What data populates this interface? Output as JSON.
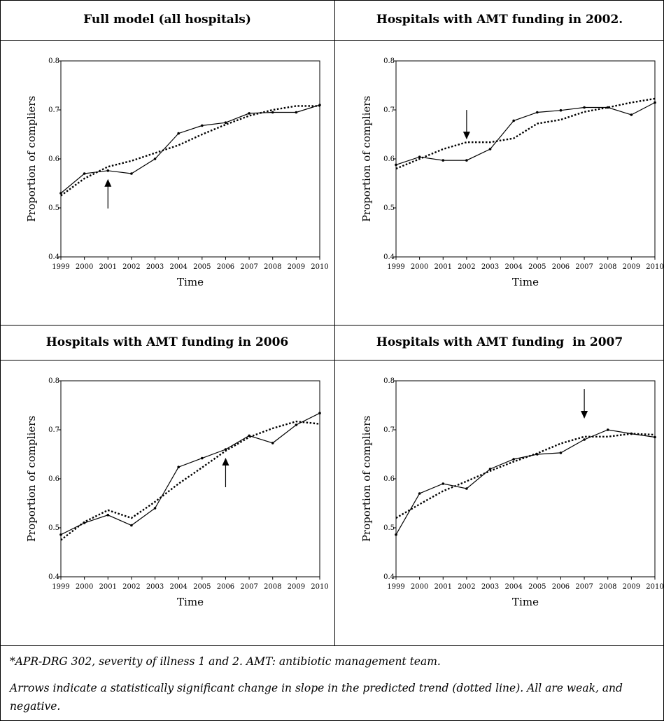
{
  "panels": [
    {
      "title": "Full model (all hospitals)",
      "chart_data": {
        "type": "line",
        "title": "Full model (all hospitals)",
        "xlabel": "Time",
        "ylabel": "Proportion of compliers",
        "x": [
          1999,
          2000,
          2001,
          2002,
          2003,
          2004,
          2005,
          2006,
          2007,
          2008,
          2009,
          2010
        ],
        "xlim": [
          1999,
          2010
        ],
        "ylim": [
          0.4,
          0.8
        ],
        "yticks": [
          "0.4",
          "0.5",
          "0.6",
          "0.7",
          "0.8"
        ],
        "series": [
          {
            "style": "solid",
            "values": [
              0.53,
              0.57,
              0.576,
              0.57,
              0.6,
              0.652,
              0.668,
              0.674,
              0.693,
              0.695,
              0.695,
              0.71
            ]
          },
          {
            "style": "dotted",
            "values": [
              0.525,
              0.56,
              0.584,
              0.596,
              0.612,
              0.628,
              0.65,
              0.67,
              0.688,
              0.7,
              0.708,
              0.708
            ]
          }
        ],
        "arrow": {
          "x": 2001,
          "direction": "up"
        },
        "grid": false,
        "legend": "none"
      }
    },
    {
      "title": "Hospitals with AMT funding in 2002.",
      "chart_data": {
        "type": "line",
        "title": "Hospitals with AMT funding in 2002.",
        "xlabel": "Time",
        "ylabel": "Proportion of compliers",
        "x": [
          1999,
          2000,
          2001,
          2002,
          2003,
          2004,
          2005,
          2006,
          2007,
          2008,
          2009,
          2010
        ],
        "xlim": [
          1999,
          2010
        ],
        "ylim": [
          0.4,
          0.8
        ],
        "yticks": [
          "0.4",
          "0.5",
          "0.6",
          "0.7",
          "0.8"
        ],
        "series": [
          {
            "style": "solid",
            "values": [
              0.588,
              0.604,
              0.597,
              0.597,
              0.62,
              0.678,
              0.695,
              0.699,
              0.705,
              0.705,
              0.69,
              0.715
            ]
          },
          {
            "style": "dotted",
            "values": [
              0.58,
              0.6,
              0.62,
              0.634,
              0.634,
              0.642,
              0.672,
              0.68,
              0.696,
              0.705,
              0.715,
              0.723
            ]
          }
        ],
        "arrow": {
          "x": 2002,
          "direction": "down"
        },
        "grid": false,
        "legend": "none"
      }
    },
    {
      "title": "Hospitals with AMT funding in 2006",
      "chart_data": {
        "type": "line",
        "title": "Hospitals with AMT funding in 2006",
        "xlabel": "Time",
        "ylabel": "Proportion of compliers",
        "x": [
          1999,
          2000,
          2001,
          2002,
          2003,
          2004,
          2005,
          2006,
          2007,
          2008,
          2009,
          2010
        ],
        "xlim": [
          1999,
          2010
        ],
        "ylim": [
          0.4,
          0.8
        ],
        "yticks": [
          "0.4",
          "0.5",
          "0.6",
          "0.7",
          "0.8"
        ],
        "series": [
          {
            "style": "solid",
            "values": [
              0.486,
              0.51,
              0.526,
              0.505,
              0.54,
              0.624,
              0.642,
              0.66,
              0.688,
              0.673,
              0.71,
              0.734
            ]
          },
          {
            "style": "dotted",
            "values": [
              0.475,
              0.512,
              0.536,
              0.52,
              0.553,
              0.59,
              0.623,
              0.657,
              0.685,
              0.703,
              0.717,
              0.712
            ]
          }
        ],
        "arrow": {
          "x": 2006,
          "direction": "up"
        },
        "grid": false,
        "legend": "none"
      }
    },
    {
      "title": "Hospitals with AMT funding  in 2007",
      "chart_data": {
        "type": "line",
        "title": "Hospitals with AMT funding  in 2007",
        "xlabel": "Time",
        "ylabel": "Proportion of compliers",
        "x": [
          1999,
          2000,
          2001,
          2002,
          2003,
          2004,
          2005,
          2006,
          2007,
          2008,
          2009,
          2010
        ],
        "xlim": [
          1999,
          2010
        ],
        "ylim": [
          0.4,
          0.8
        ],
        "yticks": [
          "0.4",
          "0.5",
          "0.6",
          "0.7",
          "0.8"
        ],
        "series": [
          {
            "style": "solid",
            "values": [
              0.486,
              0.57,
              0.59,
              0.58,
              0.62,
              0.64,
              0.65,
              0.653,
              0.68,
              0.7,
              0.692,
              0.685
            ]
          },
          {
            "style": "dotted",
            "values": [
              0.52,
              0.548,
              0.575,
              0.595,
              0.616,
              0.635,
              0.652,
              0.672,
              0.686,
              0.686,
              0.692,
              0.69
            ]
          }
        ],
        "arrow": {
          "x": 2007,
          "direction": "down"
        },
        "grid": false,
        "legend": "none"
      }
    }
  ],
  "footnotes": {
    "line1": "*APR-DRG 302, severity of illness 1 and 2.   AMT: antibiotic management team.",
    "line2": "Arrows indicate a statistically significant change in slope in the predicted trend (dotted line). All are weak, and negative."
  },
  "colors": {
    "line": "#000000",
    "background": "#ffffff"
  }
}
